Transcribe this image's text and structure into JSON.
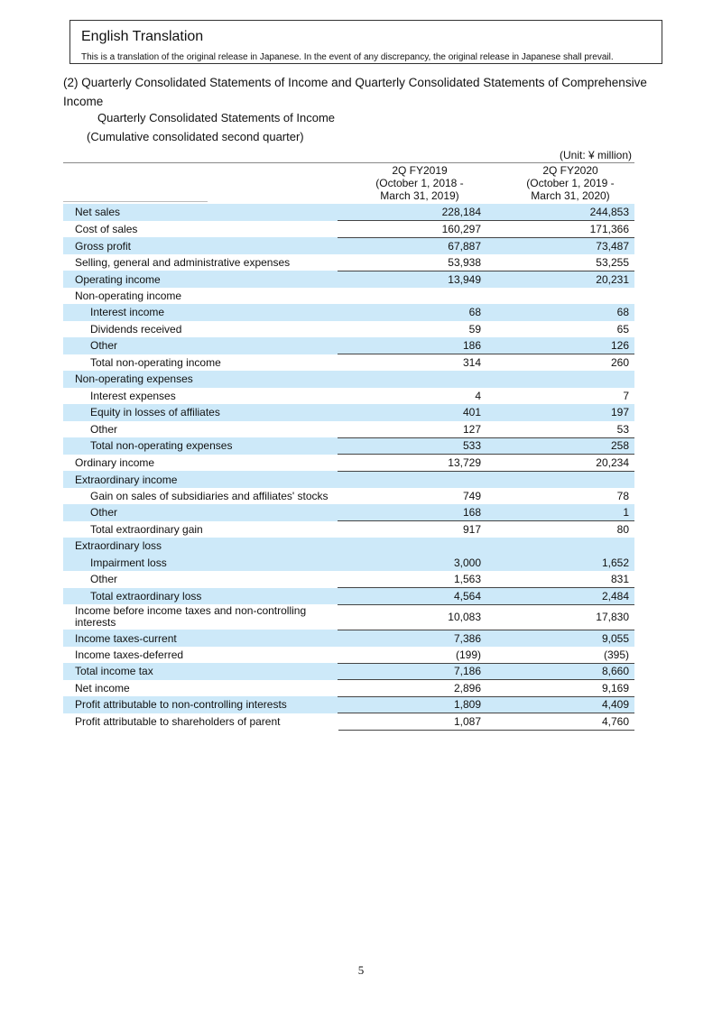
{
  "banner": {
    "title": "English Translation",
    "note": "This is a translation of the original release in Japanese. In the event of any discrepancy, the original release in Japanese shall prevail."
  },
  "heading": "(2) Quarterly Consolidated Statements of Income and Quarterly Consolidated Statements of Comprehensive Income",
  "subheading": "Quarterly Consolidated Statements of Income",
  "period_note": "(Cumulative consolidated second quarter)",
  "unit": "(Unit: ¥ million)",
  "columns": [
    {
      "line1": "2Q FY2019",
      "line2": "(October 1, 2018 -",
      "line3": "March 31, 2019)"
    },
    {
      "line1": "2Q FY2020",
      "line2": "(October 1, 2019 -",
      "line3": "March 31, 2020)"
    }
  ],
  "rows": [
    {
      "label": "Net sales",
      "v1": "228,184",
      "v2": "244,853",
      "hl": 1,
      "b": 0,
      "ind": 0
    },
    {
      "label": "Cost of sales",
      "v1": "160,297",
      "v2": "171,366",
      "hl": 0,
      "b": 1,
      "ind": 0
    },
    {
      "label": "Gross profit",
      "v1": "67,887",
      "v2": "73,487",
      "hl": 1,
      "b": 1,
      "ind": 0
    },
    {
      "label": "Selling, general and administrative expenses",
      "v1": "53,938",
      "v2": "53,255",
      "hl": 0,
      "b": 0,
      "ind": 0
    },
    {
      "label": "Operating income",
      "v1": "13,949",
      "v2": "20,231",
      "hl": 1,
      "b": 1,
      "ind": 0
    },
    {
      "label": "Non-operating income",
      "v1": "",
      "v2": "",
      "hl": 0,
      "b": 0,
      "ind": 0
    },
    {
      "label": "Interest income",
      "v1": "68",
      "v2": "68",
      "hl": 1,
      "b": 0,
      "ind": 1
    },
    {
      "label": "Dividends received",
      "v1": "59",
      "v2": "65",
      "hl": 0,
      "b": 0,
      "ind": 1
    },
    {
      "label": "Other",
      "v1": "186",
      "v2": "126",
      "hl": 1,
      "b": 0,
      "ind": 1
    },
    {
      "label": "Total non-operating income",
      "v1": "314",
      "v2": "260",
      "hl": 0,
      "b": 1,
      "ind": 1
    },
    {
      "label": "Non-operating expenses",
      "v1": "",
      "v2": "",
      "hl": 1,
      "b": 0,
      "ind": 0
    },
    {
      "label": "Interest expenses",
      "v1": "4",
      "v2": "7",
      "hl": 0,
      "b": 0,
      "ind": 1
    },
    {
      "label": "Equity in losses of affiliates",
      "v1": "401",
      "v2": "197",
      "hl": 1,
      "b": 0,
      "ind": 1
    },
    {
      "label": "Other",
      "v1": "127",
      "v2": "53",
      "hl": 0,
      "b": 0,
      "ind": 1
    },
    {
      "label": "Total non-operating expenses",
      "v1": "533",
      "v2": "258",
      "hl": 1,
      "b": 1,
      "ind": 1
    },
    {
      "label": "Ordinary income",
      "v1": "13,729",
      "v2": "20,234",
      "hl": 0,
      "b": 1,
      "ind": 0
    },
    {
      "label": "Extraordinary income",
      "v1": "",
      "v2": "",
      "hl": 1,
      "b": 1,
      "ind": 0
    },
    {
      "label": "Gain on sales of subsidiaries and affiliates' stocks",
      "v1": "749",
      "v2": "78",
      "hl": 0,
      "b": 0,
      "ind": 1
    },
    {
      "label": "Other",
      "v1": "168",
      "v2": "1",
      "hl": 1,
      "b": 0,
      "ind": 1
    },
    {
      "label": "Total extraordinary gain",
      "v1": "917",
      "v2": "80",
      "hl": 0,
      "b": 1,
      "ind": 1
    },
    {
      "label": "Extraordinary loss",
      "v1": "",
      "v2": "",
      "hl": 1,
      "b": 0,
      "ind": 0
    },
    {
      "label": "Impairment loss",
      "v1": "3,000",
      "v2": "1,652",
      "hl": 1,
      "b": 0,
      "ind": 1
    },
    {
      "label": "Other",
      "v1": "1,563",
      "v2": "831",
      "hl": 0,
      "b": 0,
      "ind": 1
    },
    {
      "label": "Total extraordinary loss",
      "v1": "4,564",
      "v2": "2,484",
      "hl": 1,
      "b": 1,
      "ind": 1
    },
    {
      "label": "Income before income taxes and non-controlling interests",
      "v1": "10,083",
      "v2": "17,830",
      "hl": 0,
      "b": 1,
      "ind": 0,
      "two": 1
    },
    {
      "label": "Income taxes-current",
      "v1": "7,386",
      "v2": "9,055",
      "hl": 1,
      "b": 1,
      "ind": 0
    },
    {
      "label": "Income taxes-deferred",
      "v1": "(199)",
      "v2": "(395)",
      "hl": 0,
      "b": 0,
      "ind": 0
    },
    {
      "label": "Total income tax",
      "v1": "7,186",
      "v2": "8,660",
      "hl": 1,
      "b": 1,
      "ind": 0
    },
    {
      "label": "Net income",
      "v1": "2,896",
      "v2": "9,169",
      "hl": 0,
      "b": 1,
      "ind": 0
    },
    {
      "label": "Profit attributable to non-controlling interests",
      "v1": "1,809",
      "v2": "4,409",
      "hl": 1,
      "b": 1,
      "ind": 0
    },
    {
      "label": "Profit attributable to shareholders of parent",
      "v1": "1,087",
      "v2": "4,760",
      "hl": 0,
      "b": 1,
      "ind": 0
    }
  ],
  "page_number": "5",
  "colors": {
    "highlight": "#cde9f9"
  }
}
